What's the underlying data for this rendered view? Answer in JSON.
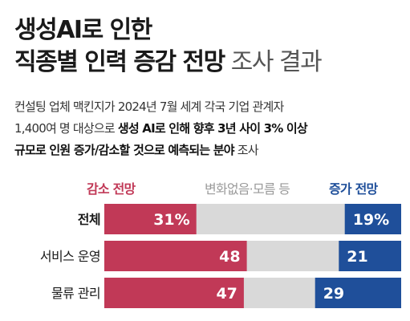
{
  "header": {
    "title_line1": "생성AI로 인한",
    "title_line2_bold": "직종별 인력 증감 전망",
    "title_line2_light": " 조사 결과"
  },
  "description": {
    "line1": "컨설팅 업체 맥킨지가 2024년 7월 세계 각국 기업 관계자",
    "line2_pre": "1,400여 명 대상으로 ",
    "line2_bold": "생성 AI로 인해 향후 3년 사이 3% 이상",
    "line3_bold": "규모로 인원 증가/감소할 것으로 예측되는 분야",
    "line3_post": " 조사"
  },
  "colors": {
    "decrease": "#c13957",
    "neutral": "#d9d9d9",
    "increase": "#1f4f9a"
  },
  "chart_data": {
    "type": "bar",
    "stacked": true,
    "orientation": "horizontal",
    "unit": "%",
    "legend": [
      "감소 전망",
      "변화없음·모름 등",
      "증가 전망"
    ],
    "categories": [
      "전체",
      "서비스 운영",
      "물류 관리"
    ],
    "series": [
      {
        "name": "감소 전망",
        "values": [
          31,
          48,
          47
        ],
        "labels": [
          "31%",
          "48",
          "47"
        ]
      },
      {
        "name": "증가 전망",
        "values": [
          19,
          21,
          29
        ],
        "labels": [
          "19%",
          "21",
          "29"
        ]
      }
    ]
  }
}
